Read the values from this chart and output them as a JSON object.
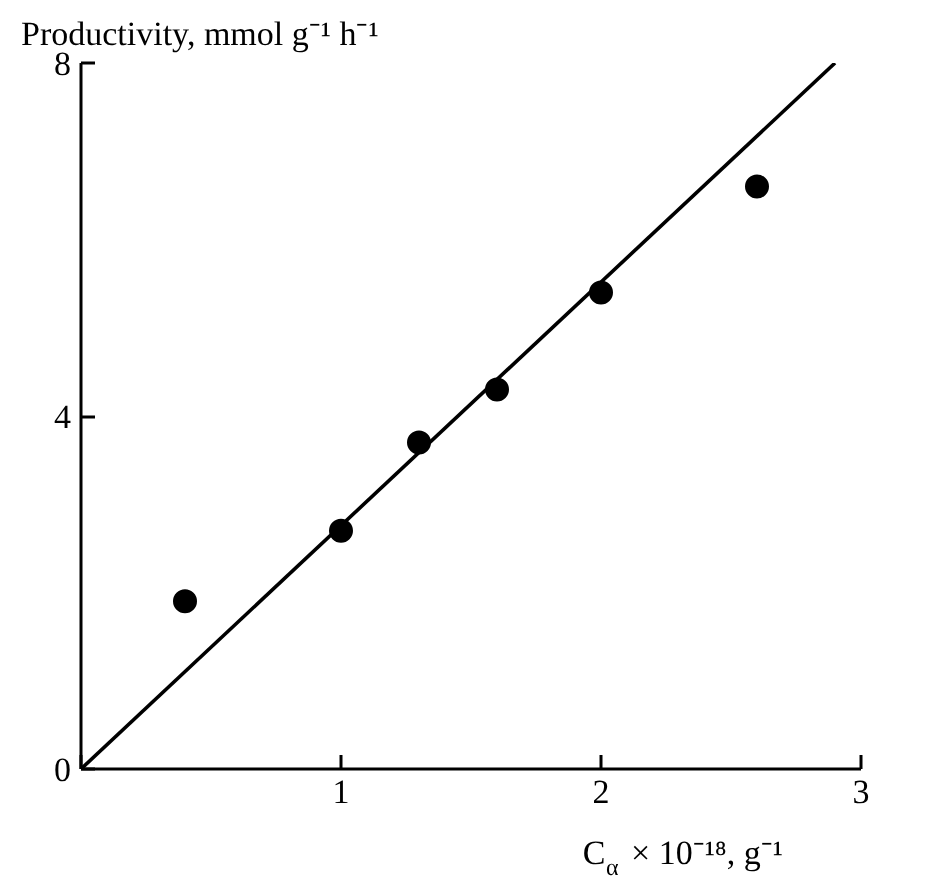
{
  "chart_data": {
    "type": "scatter",
    "xlabel": "C$_{α}$ × 10⁻¹⁸, g⁻¹",
    "ylabel": "Productivity, mmol g⁻¹ h⁻¹",
    "x": [
      0.4,
      1.0,
      1.3,
      1.6,
      2.0,
      2.6
    ],
    "marker": "circle",
    "grid": false,
    "series": [
      {
        "color": "#000000",
        "values": [
          1.9,
          2.7,
          3.7,
          4.3,
          5.4,
          6.6
        ]
      },
      {
        "type": "line",
        "color": "#000000",
        "x": [
          0,
          2.9
        ],
        "values": [
          0,
          8.0
        ],
        "line_style": "solid",
        "marker": "none"
      }
    ],
    "xlim": [
      0,
      3
    ],
    "ylim": [
      0,
      8
    ],
    "xticks": [
      {
        "value": 0,
        "label": null
      },
      1,
      2,
      3
    ],
    "yticks": [
      0,
      4,
      8
    ]
  }
}
